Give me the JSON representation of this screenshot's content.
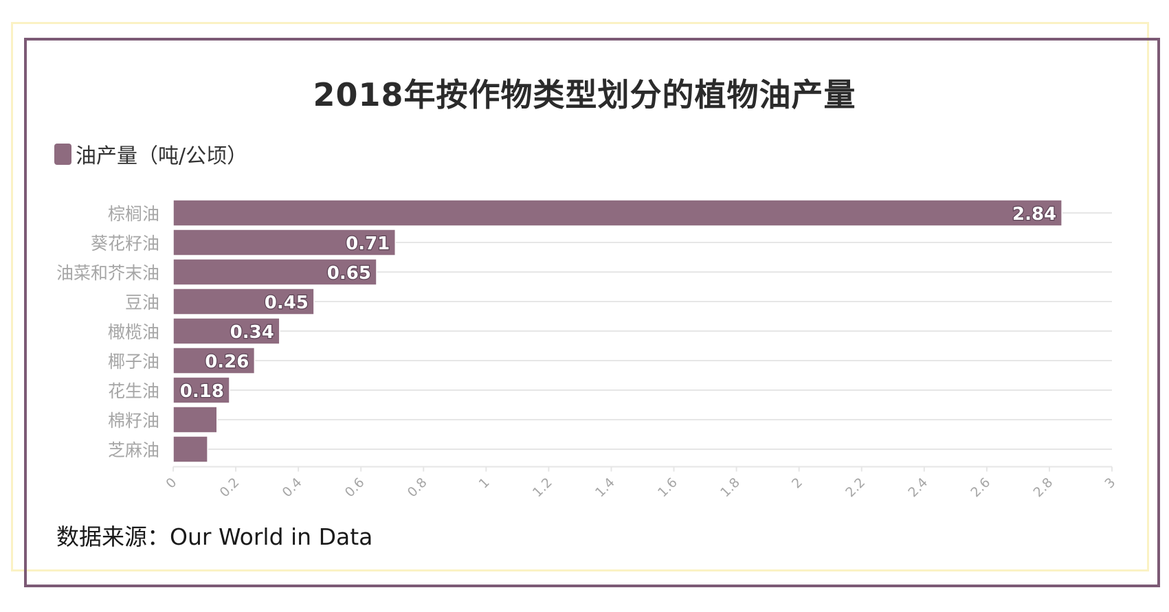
{
  "title": "2018年按作物类型划分的植物油产量",
  "legend": {
    "label": "油产量（吨/公顷）",
    "color": "#8e6b7f"
  },
  "source": "数据来源：Our World in Data",
  "colors": {
    "bar": "#8e6b7f",
    "bar_stroke": "#ffffff",
    "grid": "#e6e6e6",
    "category_label": "#a6a6a6",
    "tick_label": "#a6a6a6",
    "frame_outer": "#7c5a75",
    "frame_inner": "#fbf2c4"
  },
  "chart_data": {
    "type": "bar",
    "orientation": "horizontal",
    "categories": [
      "棕榈油",
      "葵花籽油",
      "油菜和芥末油",
      "豆油",
      "橄榄油",
      "椰子油",
      "花生油",
      "棉籽油",
      "芝麻油"
    ],
    "series": [
      {
        "name": "油产量（吨/公顷）",
        "values": [
          2.84,
          0.71,
          0.65,
          0.45,
          0.34,
          0.26,
          0.18,
          0.14,
          0.11
        ]
      }
    ],
    "data_labels": [
      "2.84",
      "0.71",
      "0.65",
      "0.45",
      "0.34",
      "0.26",
      "0.18",
      "",
      ""
    ],
    "xlim": [
      0,
      3
    ],
    "xticks": [
      0,
      0.2,
      0.4,
      0.6,
      0.8,
      1,
      1.2,
      1.4,
      1.6,
      1.8,
      2,
      2.2,
      2.4,
      2.6,
      2.8,
      3
    ],
    "xtick_labels": [
      "0",
      "0.2",
      "0.4",
      "0.6",
      "0.8",
      "1",
      "1.2",
      "1.4",
      "1.6",
      "1.8",
      "2",
      "2.2",
      "2.4",
      "2.6",
      "2.8",
      "3"
    ],
    "xlabel": "",
    "ylabel": "",
    "grid": true,
    "legend_position": "top-left"
  }
}
